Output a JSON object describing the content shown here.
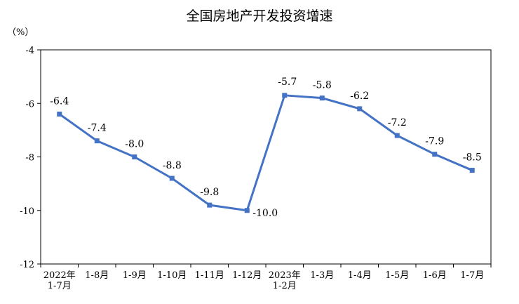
{
  "chart_data": {
    "type": "line",
    "title": "全国房地产开发投资增速",
    "ylabel": "（%）",
    "ylim": [
      -12,
      -4
    ],
    "yticks": [
      -4,
      -6,
      -8,
      -10,
      -12
    ],
    "ytick_labels": [
      "-4",
      "-6",
      "-8",
      "-10",
      "-12"
    ],
    "grid": false,
    "categories": [
      [
        "2022年",
        "1-7月"
      ],
      [
        "1-8月"
      ],
      [
        "1-9月"
      ],
      [
        "1-10月"
      ],
      [
        "1-11月"
      ],
      [
        "1-12月"
      ],
      [
        "2023年",
        "1-2月"
      ],
      [
        "1-3月"
      ],
      [
        "1-4月"
      ],
      [
        "1-5月"
      ],
      [
        "1-6月"
      ],
      [
        "1-7月"
      ]
    ],
    "values": [
      -6.4,
      -7.4,
      -8.0,
      -8.8,
      -9.8,
      -10.0,
      -5.7,
      -5.8,
      -6.2,
      -7.2,
      -7.9,
      -8.5
    ],
    "data_labels": [
      "-6.4",
      "-7.4",
      "-8.0",
      "-8.8",
      "-9.8",
      "-10.0",
      "-5.7",
      "-5.8",
      "-6.2",
      "-7.2",
      "-7.9",
      "-8.5"
    ],
    "line_color": "#4472C4"
  }
}
